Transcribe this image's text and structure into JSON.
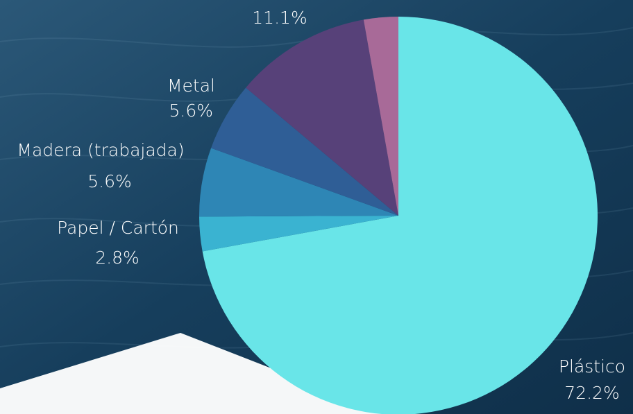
{
  "colors": {
    "background": "#1e4a6a",
    "plastico": "#69e5e8",
    "papel": "#3ab3d1",
    "madera": "#2e86b5",
    "metal": "#2f5e96",
    "other": "#574179",
    "other_small": "#a86a98"
  },
  "chart_data": {
    "type": "pie",
    "start": "12 o'clock",
    "direction": "clockwise",
    "slices": [
      {
        "name": "Plástico",
        "value": 72.2,
        "label": "72.2%",
        "color": "#69e5e8"
      },
      {
        "name": "Papel / Cartón",
        "value": 2.8,
        "label": "2.8%",
        "color": "#3ab3d1"
      },
      {
        "name": "Madera (trabajada)",
        "value": 5.6,
        "label": "5.6%",
        "color": "#2e86b5"
      },
      {
        "name": "Metal",
        "value": 5.6,
        "label": "5.6%",
        "color": "#2f5e96"
      },
      {
        "name": "",
        "value": 11.1,
        "label": "11.1%",
        "color": "#574179"
      },
      {
        "name": "",
        "value": 2.8,
        "label": "",
        "color": "#a86a98"
      }
    ]
  }
}
